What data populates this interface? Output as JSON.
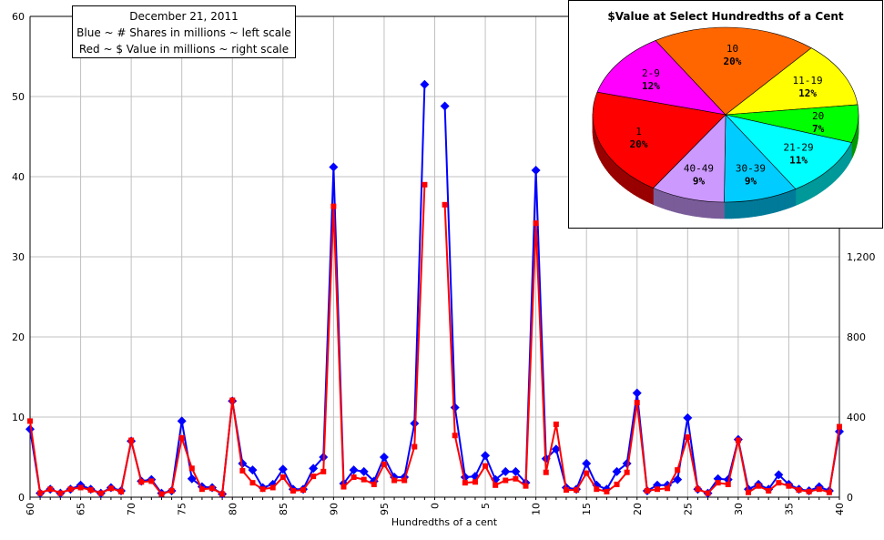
{
  "chart_data": [
    {
      "type": "line",
      "title": "December 21, 2011",
      "annotation_lines": [
        "December 21, 2011",
        "Blue ~ # Shares in millions ~ left scale",
        "Red ~ $ Value in millions ~ right scale"
      ],
      "xlabel": "Hundredths of a cent",
      "ylabel": "",
      "x_tick_labels": [
        "60",
        "65",
        "70",
        "75",
        "80",
        "85",
        "90",
        "95",
        "0",
        "5",
        "10",
        "15",
        "20",
        "25",
        "30",
        "35",
        "40"
      ],
      "ylim_left": [
        0,
        60
      ],
      "yticks_left": [
        "0",
        "10",
        "20",
        "30",
        "40",
        "50",
        "60"
      ],
      "ylim_right": [
        0,
        2400
      ],
      "yticks_right": [
        "0",
        "400",
        "800",
        "1,200"
      ],
      "grid": true,
      "series": [
        {
          "name": "# Shares in millions",
          "color": "#0000ff",
          "marker": "diamond",
          "axis": "left",
          "values": [
            8.5,
            0.5,
            1.0,
            0.5,
            1.0,
            1.5,
            1.0,
            0.5,
            1.2,
            0.8,
            7.0,
            2.0,
            2.2,
            0.5,
            0.8,
            9.5,
            2.3,
            1.3,
            1.2,
            0.4,
            12.0,
            4.2,
            3.4,
            1.2,
            1.6,
            3.5,
            1.0,
            1.0,
            3.6,
            5.0,
            41.2,
            1.7,
            3.4,
            3.2,
            2.0,
            5.0,
            2.5,
            2.5,
            9.2,
            51.5,
            null,
            48.8,
            11.2,
            2.5,
            2.6,
            5.2,
            2.2,
            3.2,
            3.2,
            1.8,
            40.8,
            4.8,
            6.0,
            1.2,
            1.0,
            4.2,
            1.5,
            1.0,
            3.2,
            4.2,
            13.0,
            0.8,
            1.5,
            1.5,
            2.2,
            9.9,
            1.0,
            0.5,
            2.3,
            2.2,
            7.2,
            1.0,
            1.6,
            1.0,
            2.8,
            1.6,
            1.0,
            0.8,
            1.3,
            0.8,
            8.2
          ]
        },
        {
          "name": "$ Value in millions",
          "color": "#ff0000",
          "marker": "square",
          "axis": "right",
          "values": [
            380,
            20,
            40,
            20,
            40,
            48,
            36,
            20,
            44,
            28,
            284,
            76,
            80,
            16,
            32,
            296,
            144,
            40,
            44,
            16,
            484,
            132,
            72,
            40,
            48,
            100,
            32,
            36,
            104,
            128,
            1452,
            52,
            100,
            88,
            64,
            164,
            84,
            84,
            252,
            1560,
            null,
            1460,
            308,
            72,
            76,
            156,
            60,
            84,
            92,
            56,
            1368,
            124,
            364,
            36,
            36,
            120,
            40,
            28,
            64,
            124,
            472,
            32,
            40,
            44,
            136,
            300,
            40,
            20,
            72,
            64,
            284,
            24,
            56,
            32,
            72,
            56,
            36,
            28,
            40,
            24,
            352
          ]
        }
      ]
    },
    {
      "type": "pie",
      "title": "$Value at Select Hundredths of a Cent",
      "slices": [
        {
          "label": "2-9",
          "pct": "12%",
          "value": 12,
          "color": "#ff00ff"
        },
        {
          "label": "10",
          "pct": "20%",
          "value": 20,
          "color": "#ff6600"
        },
        {
          "label": "11-19",
          "pct": "12%",
          "value": 12,
          "color": "#ffff00"
        },
        {
          "label": "20",
          "pct": "7%",
          "value": 7,
          "color": "#00ff00"
        },
        {
          "label": "21-29",
          "pct": "11%",
          "value": 11,
          "color": "#00ffff"
        },
        {
          "label": "30-39",
          "pct": "9%",
          "value": 9,
          "color": "#00ccff"
        },
        {
          "label": "40-49",
          "pct": "9%",
          "value": 9,
          "color": "#cc99ff"
        },
        {
          "label": "1",
          "pct": "20%",
          "value": 20,
          "color": "#ff0000"
        }
      ]
    }
  ]
}
